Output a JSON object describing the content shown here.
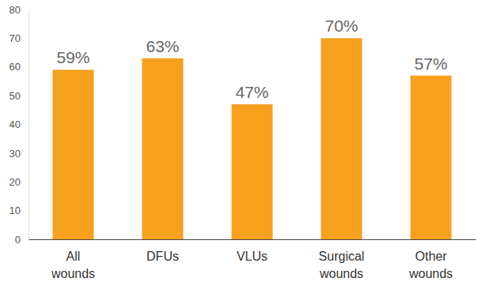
{
  "chart_data": {
    "type": "bar",
    "categories": [
      "All wounds",
      "DFUs",
      "VLUs",
      "Surgical wounds",
      "Other wounds"
    ],
    "values": [
      59,
      63,
      47,
      70,
      57
    ],
    "value_labels": [
      "59%",
      "63%",
      "47%",
      "70%",
      "57%"
    ],
    "color": "#f7a01e",
    "ylim": [
      0,
      80
    ],
    "yticks": [
      0,
      10,
      20,
      30,
      40,
      50,
      60,
      70,
      80
    ],
    "grid": false,
    "data_labels": true
  }
}
